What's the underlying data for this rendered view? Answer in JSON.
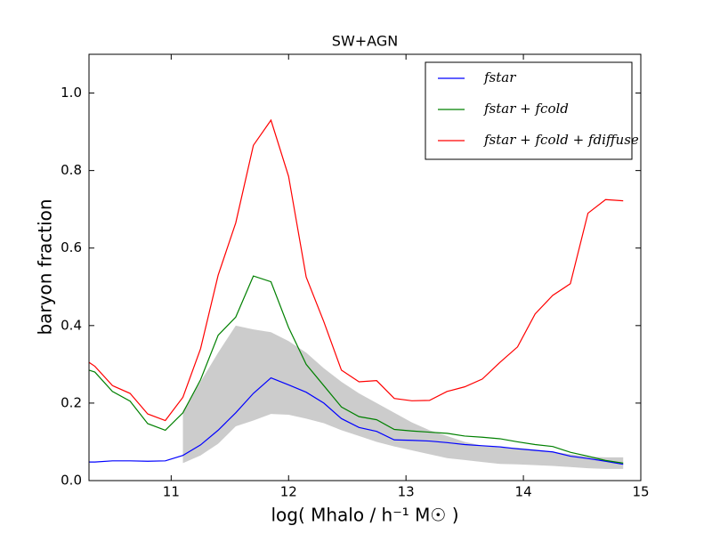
{
  "chart_data": {
    "type": "line",
    "title": "SW+AGN",
    "x_label": "log( Mhalo / h⁻¹ M☉ )",
    "y_label": "baryon fraction",
    "x": [
      10.3,
      10.35,
      10.5,
      10.65,
      10.8,
      10.95,
      11.1,
      11.25,
      11.4,
      11.55,
      11.7,
      11.85,
      12.0,
      12.15,
      12.3,
      12.45,
      12.6,
      12.75,
      12.9,
      13.05,
      13.2,
      13.35,
      13.5,
      13.65,
      13.8,
      13.95,
      14.1,
      14.25,
      14.4,
      14.55,
      14.7,
      14.85
    ],
    "series": [
      {
        "name": "fstar",
        "color": "#0000ff",
        "values": [
          0.048,
          0.048,
          0.051,
          0.051,
          0.05,
          0.051,
          0.065,
          0.092,
          0.13,
          0.175,
          0.225,
          0.265,
          0.247,
          0.228,
          0.2,
          0.16,
          0.137,
          0.127,
          0.105,
          0.104,
          0.102,
          0.098,
          0.093,
          0.09,
          0.087,
          0.082,
          0.078,
          0.074,
          0.063,
          0.057,
          0.05,
          0.042
        ]
      },
      {
        "name": "fstar + fcold",
        "color": "#008000",
        "values": [
          0.285,
          0.28,
          0.23,
          0.205,
          0.147,
          0.13,
          0.175,
          0.26,
          0.375,
          0.422,
          0.528,
          0.513,
          0.395,
          0.3,
          0.245,
          0.19,
          0.165,
          0.157,
          0.132,
          0.128,
          0.125,
          0.122,
          0.115,
          0.112,
          0.108,
          0.1,
          0.093,
          0.088,
          0.073,
          0.063,
          0.052,
          0.045
        ]
      },
      {
        "name": "fstar + fcold + fdiffuse",
        "color": "#ff0000",
        "values": [
          0.305,
          0.295,
          0.245,
          0.225,
          0.172,
          0.155,
          0.215,
          0.34,
          0.53,
          0.665,
          0.865,
          0.93,
          0.785,
          0.525,
          0.41,
          0.285,
          0.255,
          0.258,
          0.212,
          0.206,
          0.207,
          0.23,
          0.242,
          0.262,
          0.305,
          0.345,
          0.43,
          0.478,
          0.508,
          0.69,
          0.725,
          0.722
        ]
      }
    ],
    "band": {
      "color": "#cccccc",
      "x": [
        11.1,
        11.25,
        11.4,
        11.55,
        11.7,
        11.85,
        12.0,
        12.15,
        12.3,
        12.45,
        12.6,
        12.75,
        12.9,
        13.05,
        13.2,
        13.35,
        13.5,
        13.65,
        13.8,
        13.95,
        14.1,
        14.25,
        14.4,
        14.55,
        14.7,
        14.85
      ],
      "upper": [
        0.18,
        0.255,
        0.33,
        0.4,
        0.39,
        0.383,
        0.36,
        0.33,
        0.29,
        0.255,
        0.225,
        0.2,
        0.175,
        0.15,
        0.13,
        0.115,
        0.1,
        0.09,
        0.085,
        0.085,
        0.08,
        0.075,
        0.068,
        0.062,
        0.06,
        0.06
      ],
      "lower": [
        0.045,
        0.065,
        0.095,
        0.14,
        0.155,
        0.172,
        0.17,
        0.16,
        0.148,
        0.13,
        0.115,
        0.1,
        0.088,
        0.078,
        0.068,
        0.058,
        0.053,
        0.048,
        0.043,
        0.042,
        0.04,
        0.038,
        0.035,
        0.032,
        0.03,
        0.03
      ]
    },
    "xlim": [
      10.3,
      15
    ],
    "ylim": [
      0,
      1.1
    ],
    "xticks": [
      11,
      12,
      13,
      14,
      15
    ],
    "yticks": [
      {
        "value": 0,
        "label": "0.0"
      },
      0.2,
      0.4,
      0.6,
      0.8,
      {
        "value": 1,
        "label": "1.0"
      }
    ],
    "legend": "upper right",
    "grid": false
  }
}
